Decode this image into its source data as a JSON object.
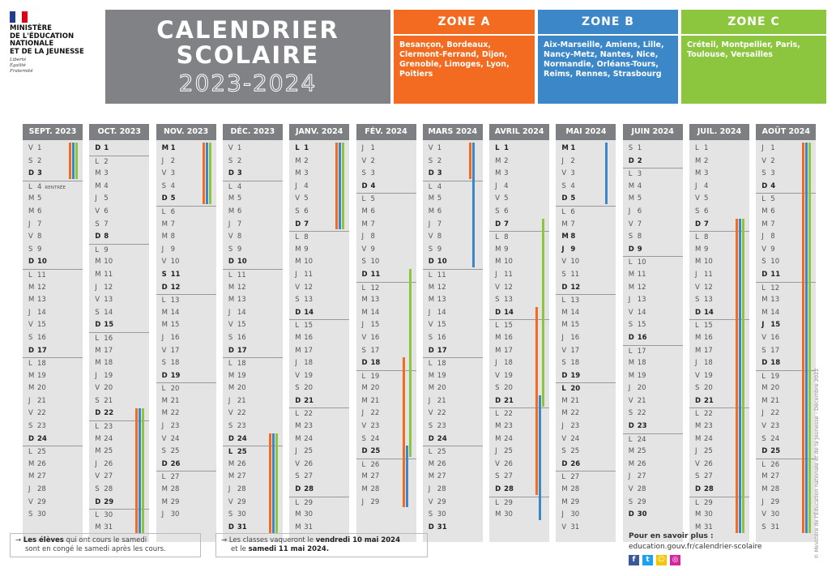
{
  "header": {
    "ministry": [
      "MINISTÈRE",
      "DE L'ÉDUCATION",
      "NATIONALE",
      "ET DE LA JEUNESSE"
    ],
    "motto": [
      "Liberté",
      "Égalité",
      "Fraternité"
    ],
    "title_line1": "CALENDRIER",
    "title_line2": "SCOLAIRE",
    "title_years": "2023-2024"
  },
  "colors": {
    "zoneA": "#f26b21",
    "zoneB": "#3c87c7",
    "zoneC": "#8cc63f",
    "title_bg": "#808285",
    "month_header": "#7d7f82",
    "month_bg": "#e4e4e5"
  },
  "zones": [
    {
      "name": "ZONE A",
      "color": "#f26b21",
      "cities": "Besançon, Bordeaux, Clermont-Ferrand, Dijon, Grenoble, Limoges, Lyon, Poitiers"
    },
    {
      "name": "ZONE B",
      "color": "#3c87c7",
      "cities": "Aix-Marseille, Amiens, Lille, Nancy-Metz, Nantes, Nice, Normandie, Orléans-Tours, Reims, Rennes, Strasbourg"
    },
    {
      "name": "ZONE C",
      "color": "#8cc63f",
      "cities": "Créteil, Montpellier, Paris, Toulouse, Versailles"
    }
  ],
  "months": [
    {
      "name": "SEPT. 2023",
      "year": 2023,
      "month": 9,
      "note": {
        "day": 4,
        "text": "RENTRÉE"
      }
    },
    {
      "name": "OCT. 2023",
      "year": 2023,
      "month": 10
    },
    {
      "name": "NOV. 2023",
      "year": 2023,
      "month": 11
    },
    {
      "name": "DÉC. 2023",
      "year": 2023,
      "month": 12
    },
    {
      "name": "JANV. 2024",
      "year": 2024,
      "month": 1
    },
    {
      "name": "FÉV. 2024",
      "year": 2024,
      "month": 2
    },
    {
      "name": "MARS 2024",
      "year": 2024,
      "month": 3
    },
    {
      "name": "AVRIL 2024",
      "year": 2024,
      "month": 4
    },
    {
      "name": "MAI 2024",
      "year": 2024,
      "month": 5
    },
    {
      "name": "JUIN 2024",
      "year": 2024,
      "month": 6
    },
    {
      "name": "JUIL. 2024",
      "year": 2024,
      "month": 7
    },
    {
      "name": "AOÛT 2024",
      "year": 2024,
      "month": 8
    }
  ],
  "day_letters": [
    "D",
    "L",
    "M",
    "M",
    "J",
    "V",
    "S"
  ],
  "holidays": [
    "2023-11-01",
    "2023-11-11",
    "2023-12-25",
    "2024-01-01",
    "2024-04-01",
    "2024-05-01",
    "2024-05-08",
    "2024-05-09",
    "2024-05-20",
    "2024-07-14",
    "2024-08-15"
  ],
  "vacations": [
    {
      "zone": "A",
      "month": 9,
      "from": 1,
      "to": 3
    },
    {
      "zone": "B",
      "month": 9,
      "from": 1,
      "to": 3
    },
    {
      "zone": "C",
      "month": 9,
      "from": 1,
      "to": 3
    },
    {
      "zone": "A",
      "month": 10,
      "from": 22,
      "to": 31
    },
    {
      "zone": "B",
      "month": 10,
      "from": 22,
      "to": 31
    },
    {
      "zone": "C",
      "month": 10,
      "from": 22,
      "to": 31
    },
    {
      "zone": "A",
      "month": 11,
      "from": 1,
      "to": 5
    },
    {
      "zone": "B",
      "month": 11,
      "from": 1,
      "to": 5
    },
    {
      "zone": "C",
      "month": 11,
      "from": 1,
      "to": 5
    },
    {
      "zone": "A",
      "month": 12,
      "from": 24,
      "to": 31
    },
    {
      "zone": "B",
      "month": 12,
      "from": 24,
      "to": 31
    },
    {
      "zone": "C",
      "month": 12,
      "from": 24,
      "to": 31
    },
    {
      "zone": "A",
      "month": 1,
      "from": 1,
      "to": 7
    },
    {
      "zone": "B",
      "month": 1,
      "from": 1,
      "to": 7
    },
    {
      "zone": "C",
      "month": 1,
      "from": 1,
      "to": 7
    },
    {
      "zone": "C",
      "month": 2,
      "from": 11,
      "to": 25
    },
    {
      "zone": "A",
      "month": 2,
      "from": 18,
      "to": 29
    },
    {
      "zone": "B",
      "month": 2,
      "from": 25,
      "to": 29
    },
    {
      "zone": "A",
      "month": 3,
      "from": 1,
      "to": 3
    },
    {
      "zone": "B",
      "month": 3,
      "from": 1,
      "to": 10
    },
    {
      "zone": "C",
      "month": 4,
      "from": 7,
      "to": 21
    },
    {
      "zone": "A",
      "month": 4,
      "from": 14,
      "to": 28
    },
    {
      "zone": "B",
      "month": 4,
      "from": 21,
      "to": 30
    },
    {
      "zone": "B",
      "month": 5,
      "from": 1,
      "to": 5
    },
    {
      "zone": "A",
      "month": 7,
      "from": 7,
      "to": 31
    },
    {
      "zone": "B",
      "month": 7,
      "from": 7,
      "to": 31
    },
    {
      "zone": "C",
      "month": 7,
      "from": 7,
      "to": 31
    },
    {
      "zone": "A",
      "month": 8,
      "from": 1,
      "to": 31
    },
    {
      "zone": "B",
      "month": 8,
      "from": 1,
      "to": 31
    },
    {
      "zone": "C",
      "month": 8,
      "from": 1,
      "to": 31
    }
  ],
  "footer": {
    "note1_bold": "Les élèves",
    "note1_rest": " qui ont cours le samedi",
    "note1_line2": "sont en congé le samedi après les cours.",
    "note2_start": "Les classes vaqueront le ",
    "note2_bold1": "vendredi 10 mai 2024",
    "note2_mid": "et le ",
    "note2_bold2": "samedi 11 mai 2024.",
    "arrow": "→",
    "more_title": "Pour en savoir plus :",
    "more_url": "education.gouv.fr/calendrier-scolaire",
    "social": [
      {
        "icon": "facebook-icon",
        "glyph": "f",
        "color": "#3b5998"
      },
      {
        "icon": "twitter-icon",
        "glyph": "t",
        "color": "#1da1f2"
      },
      {
        "icon": "snapchat-icon",
        "glyph": "☺",
        "color": "#f5c400"
      },
      {
        "icon": "instagram-icon",
        "glyph": "◎",
        "color": "#d6249f"
      }
    ],
    "copyright": "© Ministère de l'Éducation nationale et de la Jeunesse - Décembre 2022"
  }
}
